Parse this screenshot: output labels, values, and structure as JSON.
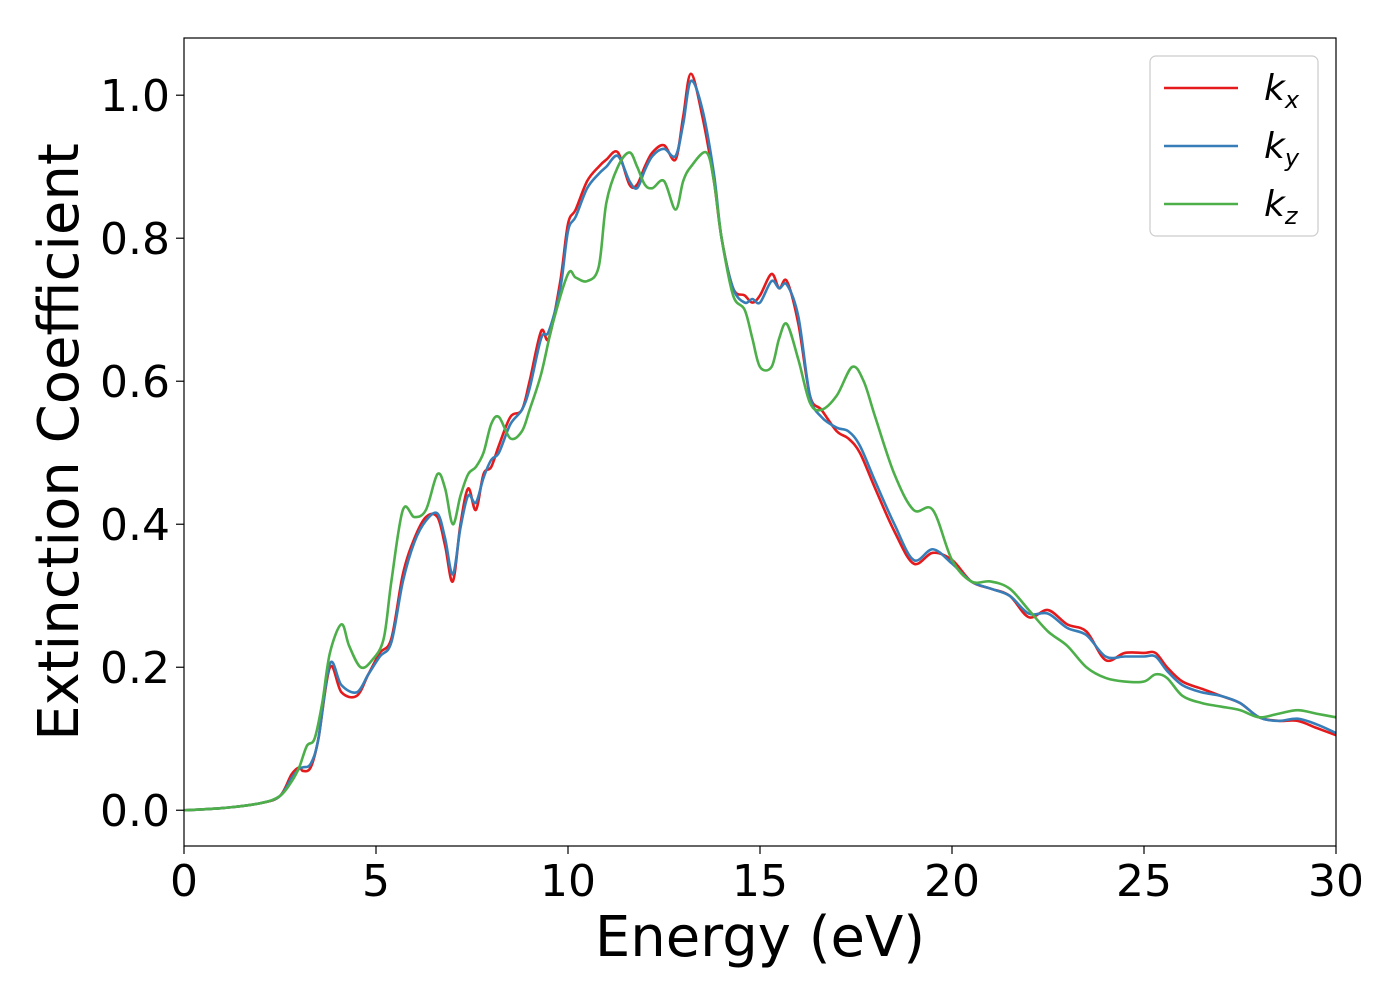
{
  "chart_data": {
    "type": "line",
    "xlabel": "Energy (eV)",
    "ylabel": "Extinction Coefficient",
    "xlim": [
      0,
      30
    ],
    "ylim": [
      -0.05,
      1.08
    ],
    "xticks": [
      0,
      5,
      10,
      15,
      20,
      25,
      30
    ],
    "yticks": [
      0.0,
      0.2,
      0.4,
      0.6,
      0.8,
      1.0
    ],
    "xtick_labels": [
      "0",
      "5",
      "10",
      "15",
      "20",
      "25",
      "30"
    ],
    "ytick_labels": [
      "0.0",
      "0.2",
      "0.4",
      "0.6",
      "0.8",
      "1.0"
    ],
    "grid": false,
    "legend_position": "top-right",
    "series": [
      {
        "name": "kx",
        "name_base": "k",
        "name_sub": "x",
        "color": "#e41a1c",
        "x": [
          0,
          1,
          2,
          2.5,
          2.8,
          3.0,
          3.1,
          3.3,
          3.5,
          3.8,
          4.1,
          4.5,
          4.8,
          5.1,
          5.4,
          5.7,
          6.0,
          6.3,
          6.6,
          6.8,
          7.0,
          7.2,
          7.4,
          7.6,
          7.8,
          8.0,
          8.2,
          8.5,
          8.8,
          9.0,
          9.3,
          9.5,
          9.8,
          10.0,
          10.2,
          10.5,
          10.8,
          11.0,
          11.3,
          11.6,
          11.8,
          12.0,
          12.2,
          12.5,
          12.8,
          13.0,
          13.2,
          13.5,
          13.8,
          14.0,
          14.3,
          14.6,
          14.8,
          15.0,
          15.3,
          15.5,
          15.7,
          16.0,
          16.3,
          16.6,
          17.0,
          17.3,
          17.6,
          18.0,
          18.5,
          19.0,
          19.5,
          20.0,
          20.5,
          21.0,
          21.5,
          22.0,
          22.5,
          23.0,
          23.5,
          24.0,
          24.5,
          25.0,
          25.3,
          25.6,
          26.0,
          26.5,
          27.0,
          27.5,
          28.0,
          28.5,
          29.0,
          29.5,
          30.0
        ],
        "y": [
          0,
          0.003,
          0.01,
          0.02,
          0.05,
          0.06,
          0.055,
          0.06,
          0.1,
          0.2,
          0.165,
          0.16,
          0.19,
          0.22,
          0.24,
          0.33,
          0.38,
          0.41,
          0.41,
          0.37,
          0.32,
          0.4,
          0.45,
          0.42,
          0.47,
          0.48,
          0.51,
          0.55,
          0.56,
          0.6,
          0.67,
          0.66,
          0.74,
          0.82,
          0.84,
          0.88,
          0.9,
          0.91,
          0.92,
          0.875,
          0.875,
          0.9,
          0.92,
          0.93,
          0.91,
          0.97,
          1.03,
          0.97,
          0.88,
          0.8,
          0.73,
          0.72,
          0.71,
          0.72,
          0.75,
          0.73,
          0.74,
          0.68,
          0.58,
          0.56,
          0.53,
          0.52,
          0.5,
          0.45,
          0.39,
          0.345,
          0.36,
          0.35,
          0.32,
          0.31,
          0.3,
          0.27,
          0.28,
          0.26,
          0.25,
          0.21,
          0.22,
          0.22,
          0.22,
          0.2,
          0.18,
          0.17,
          0.16,
          0.15,
          0.13,
          0.125,
          0.125,
          0.115,
          0.105
        ]
      },
      {
        "name": "ky",
        "name_base": "k",
        "name_sub": "y",
        "color": "#377eb8",
        "x": [
          0,
          1,
          2,
          2.5,
          2.8,
          3.0,
          3.1,
          3.3,
          3.5,
          3.8,
          4.1,
          4.5,
          4.8,
          5.1,
          5.4,
          5.7,
          6.0,
          6.3,
          6.6,
          6.8,
          7.0,
          7.2,
          7.4,
          7.6,
          7.8,
          8.0,
          8.2,
          8.5,
          8.8,
          9.0,
          9.3,
          9.5,
          9.8,
          10.0,
          10.2,
          10.5,
          10.8,
          11.0,
          11.3,
          11.6,
          11.8,
          12.0,
          12.2,
          12.5,
          12.8,
          13.0,
          13.2,
          13.5,
          13.8,
          14.0,
          14.3,
          14.6,
          14.8,
          15.0,
          15.3,
          15.5,
          15.7,
          16.0,
          16.3,
          16.6,
          17.0,
          17.3,
          17.6,
          18.0,
          18.5,
          19.0,
          19.5,
          20.0,
          20.5,
          21.0,
          21.5,
          22.0,
          22.5,
          23.0,
          23.5,
          24.0,
          24.5,
          25.0,
          25.3,
          25.6,
          26.0,
          26.5,
          27.0,
          27.5,
          28.0,
          28.5,
          29.0,
          29.5,
          30.0
        ],
        "y": [
          0,
          0.003,
          0.01,
          0.02,
          0.045,
          0.058,
          0.06,
          0.065,
          0.1,
          0.205,
          0.175,
          0.165,
          0.19,
          0.215,
          0.235,
          0.32,
          0.375,
          0.405,
          0.415,
          0.38,
          0.33,
          0.395,
          0.44,
          0.43,
          0.465,
          0.49,
          0.5,
          0.54,
          0.56,
          0.59,
          0.66,
          0.67,
          0.73,
          0.81,
          0.83,
          0.87,
          0.89,
          0.9,
          0.915,
          0.88,
          0.87,
          0.895,
          0.915,
          0.925,
          0.915,
          0.96,
          1.02,
          0.98,
          0.89,
          0.8,
          0.73,
          0.71,
          0.715,
          0.71,
          0.74,
          0.73,
          0.735,
          0.69,
          0.58,
          0.55,
          0.535,
          0.53,
          0.51,
          0.46,
          0.4,
          0.35,
          0.365,
          0.345,
          0.32,
          0.31,
          0.3,
          0.275,
          0.275,
          0.255,
          0.245,
          0.215,
          0.215,
          0.215,
          0.215,
          0.195,
          0.175,
          0.165,
          0.16,
          0.15,
          0.13,
          0.125,
          0.128,
          0.12,
          0.108
        ]
      },
      {
        "name": "kz",
        "name_base": "k",
        "name_sub": "z",
        "color": "#4daf4a",
        "x": [
          0,
          1,
          2,
          2.5,
          2.8,
          3.0,
          3.2,
          3.4,
          3.6,
          3.8,
          4.1,
          4.3,
          4.6,
          4.9,
          5.2,
          5.4,
          5.7,
          6.0,
          6.3,
          6.6,
          6.8,
          7.0,
          7.2,
          7.4,
          7.6,
          7.8,
          8.0,
          8.2,
          8.5,
          8.8,
          9.0,
          9.3,
          9.6,
          10.0,
          10.2,
          10.5,
          10.8,
          11.0,
          11.3,
          11.6,
          11.8,
          12.0,
          12.2,
          12.5,
          12.8,
          13.0,
          13.2,
          13.6,
          13.8,
          14.0,
          14.3,
          14.6,
          14.8,
          15.0,
          15.3,
          15.5,
          15.7,
          16.0,
          16.3,
          16.6,
          17.0,
          17.4,
          17.7,
          18.0,
          18.5,
          19.0,
          19.5,
          20.0,
          20.5,
          21.0,
          21.5,
          22.0,
          22.5,
          23.0,
          23.5,
          24.0,
          24.5,
          25.0,
          25.3,
          25.6,
          26.0,
          26.5,
          27.0,
          27.5,
          28.0,
          28.5,
          29.0,
          29.5,
          30.0
        ],
        "y": [
          0,
          0.003,
          0.01,
          0.02,
          0.04,
          0.06,
          0.09,
          0.1,
          0.15,
          0.22,
          0.26,
          0.23,
          0.2,
          0.21,
          0.24,
          0.32,
          0.42,
          0.41,
          0.42,
          0.47,
          0.45,
          0.4,
          0.44,
          0.47,
          0.48,
          0.5,
          0.54,
          0.55,
          0.52,
          0.53,
          0.56,
          0.61,
          0.68,
          0.75,
          0.745,
          0.74,
          0.76,
          0.85,
          0.9,
          0.92,
          0.9,
          0.875,
          0.87,
          0.88,
          0.84,
          0.88,
          0.9,
          0.92,
          0.88,
          0.8,
          0.72,
          0.7,
          0.66,
          0.62,
          0.62,
          0.66,
          0.68,
          0.63,
          0.57,
          0.56,
          0.58,
          0.62,
          0.6,
          0.55,
          0.47,
          0.42,
          0.42,
          0.35,
          0.32,
          0.32,
          0.31,
          0.28,
          0.25,
          0.23,
          0.2,
          0.185,
          0.18,
          0.18,
          0.19,
          0.185,
          0.16,
          0.15,
          0.145,
          0.14,
          0.13,
          0.135,
          0.14,
          0.135,
          0.13
        ]
      }
    ]
  }
}
